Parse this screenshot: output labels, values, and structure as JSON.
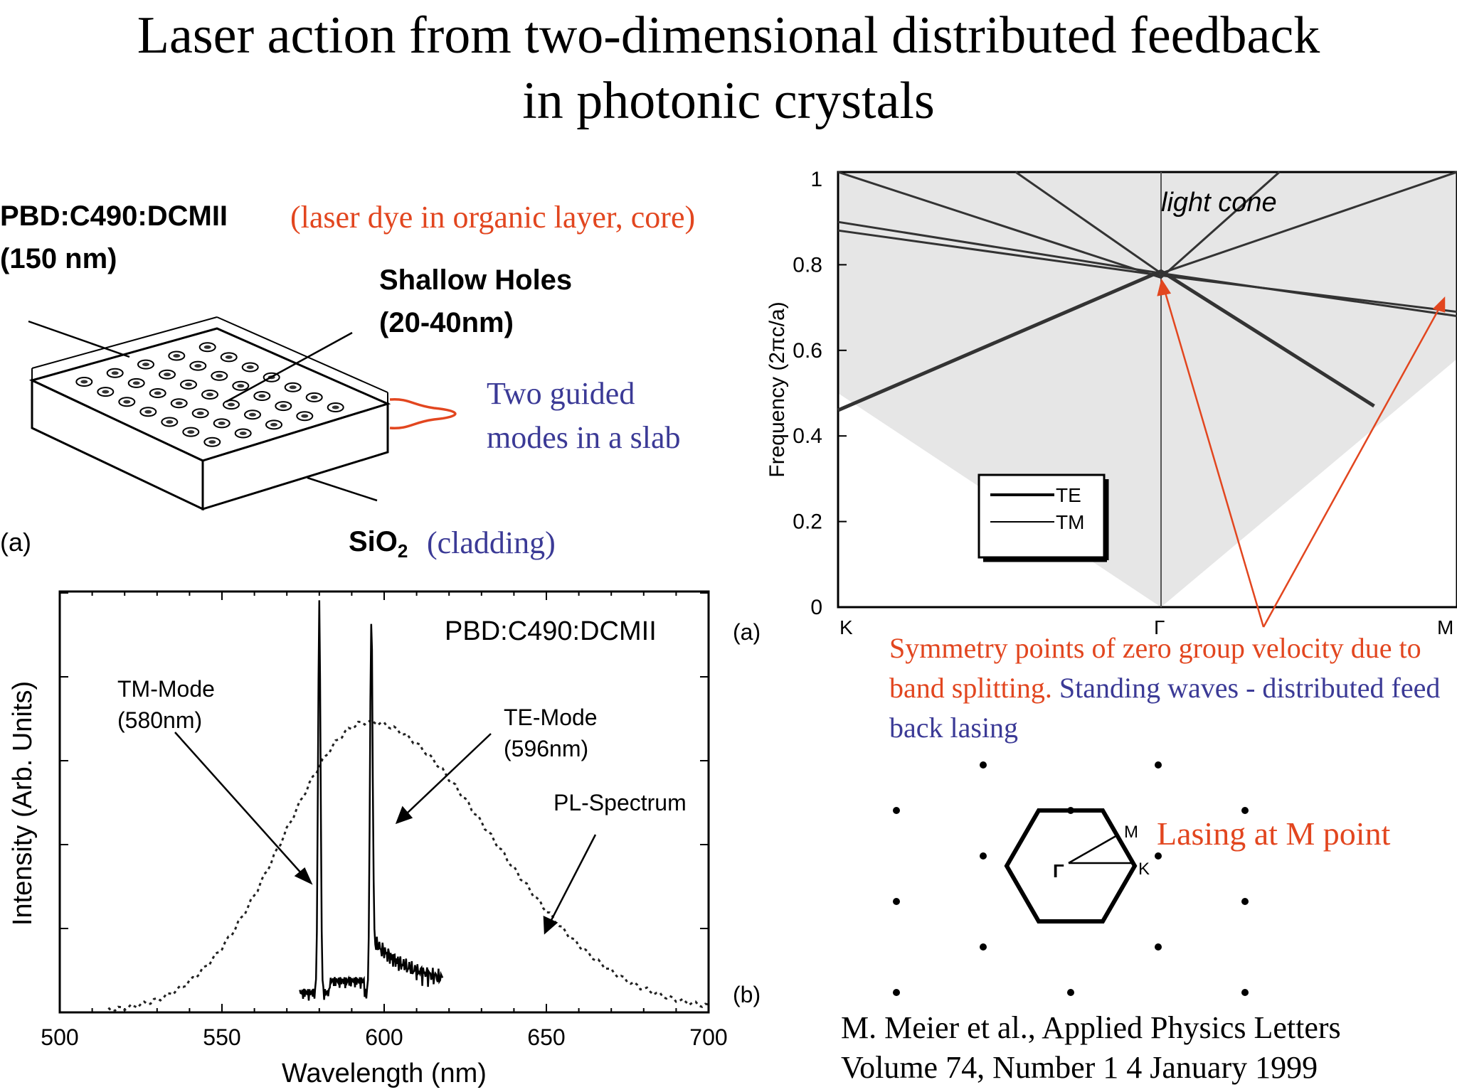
{
  "title": {
    "line1": "Laser action from two-dimensional distributed feedback",
    "line2": "in photonic crystals"
  },
  "slab_figure": {
    "material": "PBD:C490:DCMII",
    "material_note": "(laser dye in organic layer, core)",
    "thickness": "(150 nm)",
    "holes_label": "Shallow Holes",
    "holes_depth": "(20-40nm)",
    "modes_line1": "Two guided",
    "modes_line2": "modes in a slab",
    "substrate": "SiO",
    "substrate_sub": "2",
    "substrate_note": "(cladding)",
    "panel": "(a)"
  },
  "band_figure": {
    "light_cone": "light cone",
    "ylabel": "Frequency  (2πc/a)",
    "legend_te": "TE",
    "legend_tm": "TM",
    "sym_k": "K",
    "sym_gamma": "Γ",
    "sym_m": "M",
    "explain_red": "Symmetry points of zero group velocity due to band splitting.",
    "explain_blue": "Standing waves - distributed feed back lasing"
  },
  "lattice_figure": {
    "label_m": "M",
    "label_k": "K",
    "label_gamma": "Γ",
    "lasing": "Lasing at M point"
  },
  "citation": {
    "line1": "M. Meier et al., Applied Physics Letters",
    "line2": "Volume 74, Number 1 4 January 1999"
  },
  "chart_data": [
    {
      "type": "line",
      "title": "PBD:C490:DCMII",
      "xlabel": "Wavelength (nm)",
      "ylabel": "Intensity (Arb. Units)",
      "xlim": [
        500,
        700
      ],
      "xticks": [
        "500",
        "550",
        "600",
        "650",
        "700"
      ],
      "panel_labels": [
        "(a)",
        "(b)"
      ],
      "annotations": [
        {
          "label": "TM-Mode",
          "sub": "(580nm)",
          "x": 580
        },
        {
          "label": "TE-Mode",
          "sub": "(596nm)",
          "x": 596
        },
        {
          "label": "PL-Spectrum",
          "sub": "",
          "x": 650
        }
      ],
      "series": [
        {
          "name": "PL-Spectrum",
          "style": "dashed",
          "peak_x": 595,
          "sigma_left": 26,
          "sigma_right": 38,
          "peak": 0.74
        },
        {
          "name": "Lasing",
          "style": "solid",
          "x_start": 574,
          "x_end": 618,
          "peaks": [
            {
              "x": 580,
              "height": 1.0
            },
            {
              "x": 596,
              "height": 0.93
            }
          ]
        }
      ]
    },
    {
      "type": "line",
      "title": "",
      "xlabel": "",
      "ylabel": "Frequency  (2πc/a)",
      "ylim": [
        0,
        1
      ],
      "yticks": [
        "0",
        "0.2",
        "0.4",
        "0.6",
        "0.8",
        "1"
      ],
      "x_categories": [
        "K",
        "Γ",
        "M"
      ],
      "legend": [
        "TE",
        "TM"
      ],
      "series": [
        {
          "name": "light cone",
          "points": [
            [
              0,
              0.5
            ],
            [
              1,
              0
            ],
            [
              2,
              0.58
            ]
          ]
        },
        {
          "name": "band-1",
          "points": [
            [
              0,
              0.46
            ],
            [
              1,
              0.785
            ],
            [
              1.72,
              0.47
            ]
          ]
        },
        {
          "name": "band-2",
          "points": [
            [
              0,
              0.9
            ],
            [
              1,
              0.78
            ],
            [
              2,
              0.68
            ]
          ]
        },
        {
          "name": "band-3",
          "points": [
            [
              0,
              0.88
            ],
            [
              1,
              0.775
            ],
            [
              2,
              0.69
            ]
          ]
        },
        {
          "name": "band-4",
          "points": [
            [
              0,
              1.05
            ],
            [
              1,
              0.77
            ],
            [
              1.4,
              1.05
            ]
          ]
        },
        {
          "name": "band-5",
          "points": [
            [
              0.55,
              1.05
            ],
            [
              1,
              0.78
            ],
            [
              2,
              1.06
            ]
          ]
        }
      ]
    }
  ]
}
